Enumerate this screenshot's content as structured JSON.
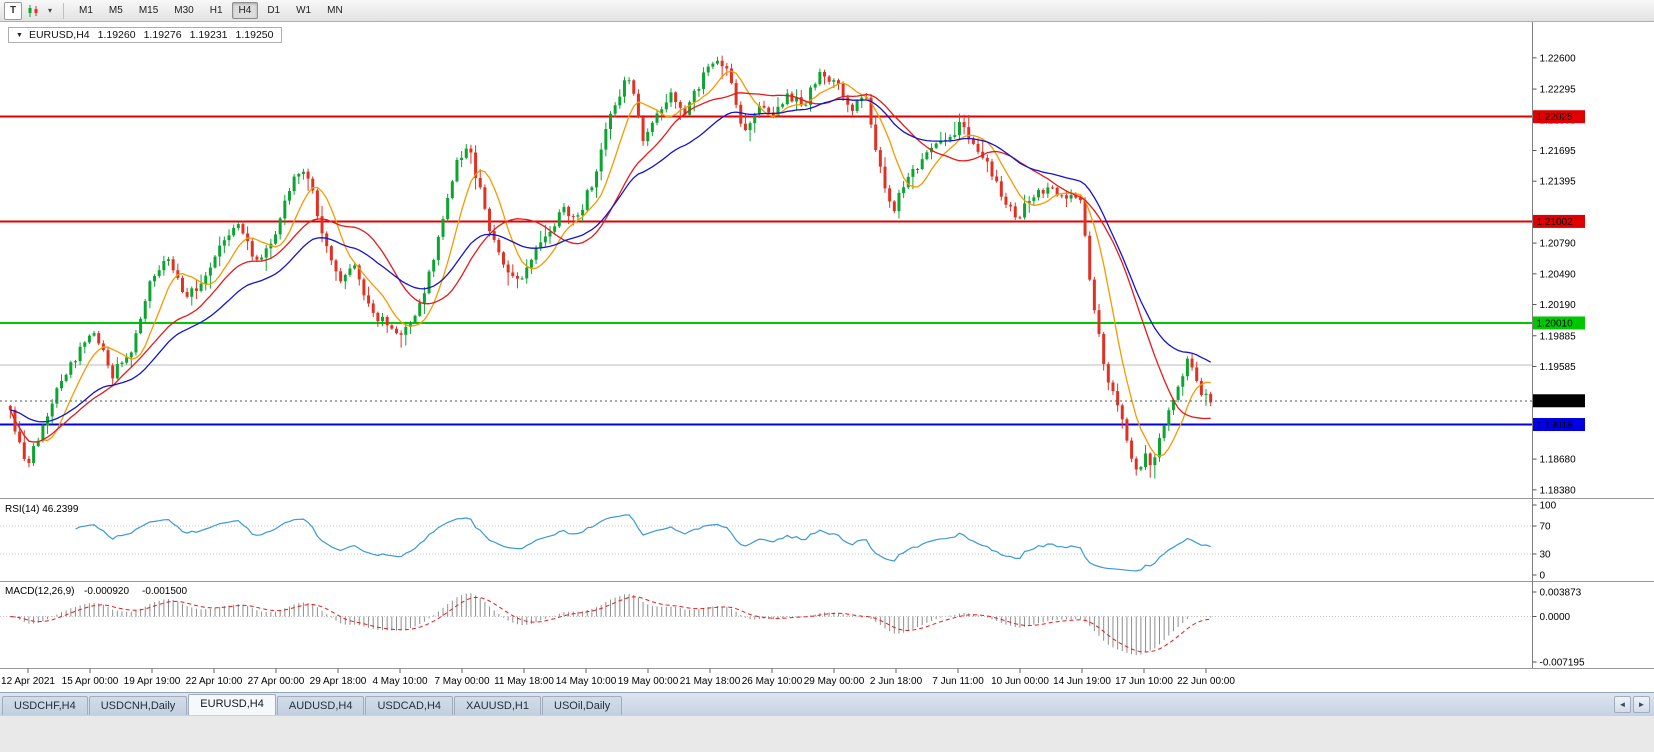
{
  "toolbar": {
    "t_label": "T",
    "timeframes": [
      "M1",
      "M5",
      "M15",
      "M30",
      "H1",
      "H4",
      "D1",
      "W1",
      "MN"
    ],
    "active_timeframe": "H4"
  },
  "icons": {
    "collapse_triangle": "▼",
    "dropdown_caret": "▾",
    "tabs_scroll_left": "◄",
    "tabs_scroll_right": "►"
  },
  "chart": {
    "symbol_period": "EURUSD,H4",
    "ohlc": {
      "open": "1.19260",
      "high": "1.19276",
      "low": "1.19231",
      "close": "1.19250"
    }
  },
  "chart_data": {
    "type": "candlestick",
    "title": "EURUSD,H4",
    "colors": {
      "bull": "#0ea432",
      "bear": "#e03224",
      "rsi_line": "#3a99d9",
      "macd_hist": "#8e8e8e",
      "macd_signal": "#e51b1b"
    },
    "price_axis_ticks": [
      1.226,
      1.22295,
      1.21995,
      1.21695,
      1.21395,
      1.2079,
      1.2049,
      1.2019,
      1.19885,
      1.19585,
      1.1868,
      1.1838
    ],
    "hlines": [
      {
        "price": 1.22025,
        "label": "1.22025",
        "color": "#e00000",
        "width": 2,
        "label_text": "#ffffff"
      },
      {
        "price": 1.21002,
        "label": "1.21002",
        "color": "#e00000",
        "width": 2,
        "label_text": "#ffffff"
      },
      {
        "price": 1.2001,
        "label": "1.20010",
        "color": "#00c800",
        "width": 2,
        "label_text": "#ffffff"
      },
      {
        "price": 1.19018,
        "label": "1.19018",
        "color": "#0000e0",
        "width": 2,
        "label_text": "#ffffff"
      }
    ],
    "gray_line_price": 1.196,
    "current_price": {
      "value": 1.1925,
      "label": "1.19250"
    },
    "moving_averages": [
      {
        "type": "sma",
        "period": 8,
        "color": "#f59a00"
      },
      {
        "type": "sma",
        "period": 20,
        "color": "#e51b1b"
      },
      {
        "type": "ema",
        "period": 32,
        "color": "#1414cc"
      }
    ],
    "rsi": {
      "label": "RSI(14)",
      "value": "46.2399",
      "period": 14,
      "axis": [
        100,
        70,
        30,
        0
      ],
      "levels": [
        70,
        30
      ]
    },
    "macd": {
      "label": "MACD(12,26,9)",
      "value_main": "-0.000920",
      "value_signal": "-0.001500",
      "axis": [
        {
          "v": 0.003873,
          "t": "0.003873"
        },
        {
          "v": 0,
          "t": "0.0000"
        },
        {
          "v": -0.007195,
          "t": "-0.007195"
        }
      ],
      "render_fast": 8,
      "render_slow": 17,
      "render_signal": 6
    },
    "time_labels": [
      "12 Apr 2021",
      "15 Apr 00:00",
      "19 Apr 19:00",
      "22 Apr 10:00",
      "27 Apr 00:00",
      "29 Apr 18:00",
      "4 May 10:00",
      "7 May 00:00",
      "11 May 18:00",
      "14 May 10:00",
      "19 May 00:00",
      "21 May 18:00",
      "26 May 10:00",
      "29 May 00:00",
      "2 Jun 18:00",
      "7 Jun 11:00",
      "10 Jun 00:00",
      "14 Jun 19:00",
      "17 Jun 10:00",
      "22 Jun 00:00"
    ],
    "close_waypoints": [
      [
        8,
        1.192
      ],
      [
        22,
        1.1872
      ],
      [
        30,
        1.1868
      ],
      [
        42,
        1.19
      ],
      [
        60,
        1.1942
      ],
      [
        78,
        1.1972
      ],
      [
        95,
        1.1992
      ],
      [
        112,
        1.195
      ],
      [
        130,
        1.1972
      ],
      [
        148,
        1.2035
      ],
      [
        168,
        1.2066
      ],
      [
        186,
        1.2028
      ],
      [
        205,
        1.2044
      ],
      [
        222,
        1.2082
      ],
      [
        238,
        1.2096
      ],
      [
        255,
        1.2062
      ],
      [
        270,
        1.2074
      ],
      [
        285,
        1.2122
      ],
      [
        298,
        1.215
      ],
      [
        310,
        1.214
      ],
      [
        325,
        1.2078
      ],
      [
        340,
        1.2044
      ],
      [
        355,
        1.2058
      ],
      [
        370,
        1.2012
      ],
      [
        386,
        1.2
      ],
      [
        402,
        1.1992
      ],
      [
        416,
        1.201
      ],
      [
        430,
        1.205
      ],
      [
        444,
        1.2108
      ],
      [
        458,
        1.2162
      ],
      [
        468,
        1.2175
      ],
      [
        478,
        1.2138
      ],
      [
        492,
        1.2085
      ],
      [
        506,
        1.2054
      ],
      [
        520,
        1.204
      ],
      [
        534,
        1.207
      ],
      [
        548,
        1.2086
      ],
      [
        562,
        1.2112
      ],
      [
        578,
        1.2105
      ],
      [
        594,
        1.2142
      ],
      [
        610,
        1.2202
      ],
      [
        622,
        1.2232
      ],
      [
        630,
        1.2243
      ],
      [
        642,
        1.218
      ],
      [
        656,
        1.22
      ],
      [
        670,
        1.2224
      ],
      [
        684,
        1.2206
      ],
      [
        700,
        1.2236
      ],
      [
        714,
        1.2257
      ],
      [
        728,
        1.2248
      ],
      [
        744,
        1.2182
      ],
      [
        758,
        1.2214
      ],
      [
        772,
        1.2202
      ],
      [
        788,
        1.2224
      ],
      [
        804,
        1.2214
      ],
      [
        820,
        1.2246
      ],
      [
        836,
        1.2234
      ],
      [
        852,
        1.2212
      ],
      [
        866,
        1.2224
      ],
      [
        880,
        1.2152
      ],
      [
        892,
        1.2108
      ],
      [
        906,
        1.214
      ],
      [
        920,
        1.2158
      ],
      [
        934,
        1.2172
      ],
      [
        948,
        1.218
      ],
      [
        962,
        1.2196
      ],
      [
        976,
        1.2168
      ],
      [
        990,
        1.2152
      ],
      [
        1004,
        1.212
      ],
      [
        1018,
        1.2103
      ],
      [
        1032,
        1.2126
      ],
      [
        1046,
        1.2132
      ],
      [
        1060,
        1.2126
      ],
      [
        1072,
        1.2122
      ],
      [
        1082,
        1.2116
      ],
      [
        1090,
        1.204
      ],
      [
        1098,
        1.1992
      ],
      [
        1106,
        1.1952
      ],
      [
        1114,
        1.1928
      ],
      [
        1122,
        1.1906
      ],
      [
        1130,
        1.1868
      ],
      [
        1138,
        1.185
      ],
      [
        1145,
        1.188
      ],
      [
        1151,
        1.1856
      ],
      [
        1158,
        1.1886
      ],
      [
        1165,
        1.1906
      ],
      [
        1172,
        1.1918
      ],
      [
        1180,
        1.1944
      ],
      [
        1188,
        1.1968
      ],
      [
        1195,
        1.1946
      ],
      [
        1202,
        1.1932
      ],
      [
        1209,
        1.1926
      ],
      [
        1213,
        1.1925
      ]
    ]
  },
  "tabs": {
    "items": [
      "USDCHF,H4",
      "USDCNH,Daily",
      "EURUSD,H4",
      "AUDUSD,H4",
      "USDCAD,H4",
      "XAUUSD,H1",
      "USOil,Daily"
    ],
    "active": "EURUSD,H4"
  }
}
